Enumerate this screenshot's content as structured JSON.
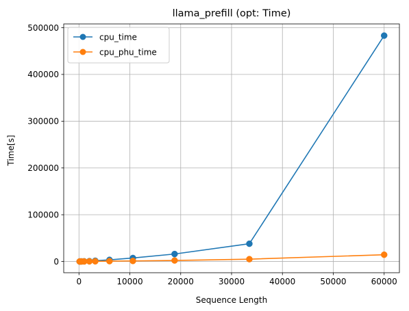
{
  "chart_data": {
    "type": "line",
    "title": "llama_prefill (opt: Time)",
    "xlabel": "Sequence Length",
    "ylabel": "Time[s]",
    "xlim": [
      -3000,
      63000
    ],
    "ylim": [
      -24000,
      508000
    ],
    "xticks": [
      0,
      10000,
      20000,
      30000,
      40000,
      50000,
      60000
    ],
    "yticks": [
      0,
      100000,
      200000,
      300000,
      400000,
      500000
    ],
    "grid": true,
    "legend_position": "top-left",
    "series": [
      {
        "name": "cpu_time",
        "color": "#1f77b4",
        "x": [
          128,
          256,
          512,
          1024,
          2048,
          3200,
          6000,
          10600,
          18800,
          33500,
          60000
        ],
        "y": [
          30,
          60,
          150,
          350,
          800,
          1600,
          3500,
          7500,
          16000,
          38000,
          483000
        ]
      },
      {
        "name": "cpu_phu_time",
        "color": "#ff7f0e",
        "x": [
          128,
          256,
          512,
          1024,
          2048,
          3200,
          6000,
          10600,
          18800,
          33500,
          60000
        ],
        "y": [
          20,
          40,
          80,
          150,
          300,
          450,
          750,
          1200,
          2200,
          5000,
          14500
        ]
      }
    ]
  }
}
